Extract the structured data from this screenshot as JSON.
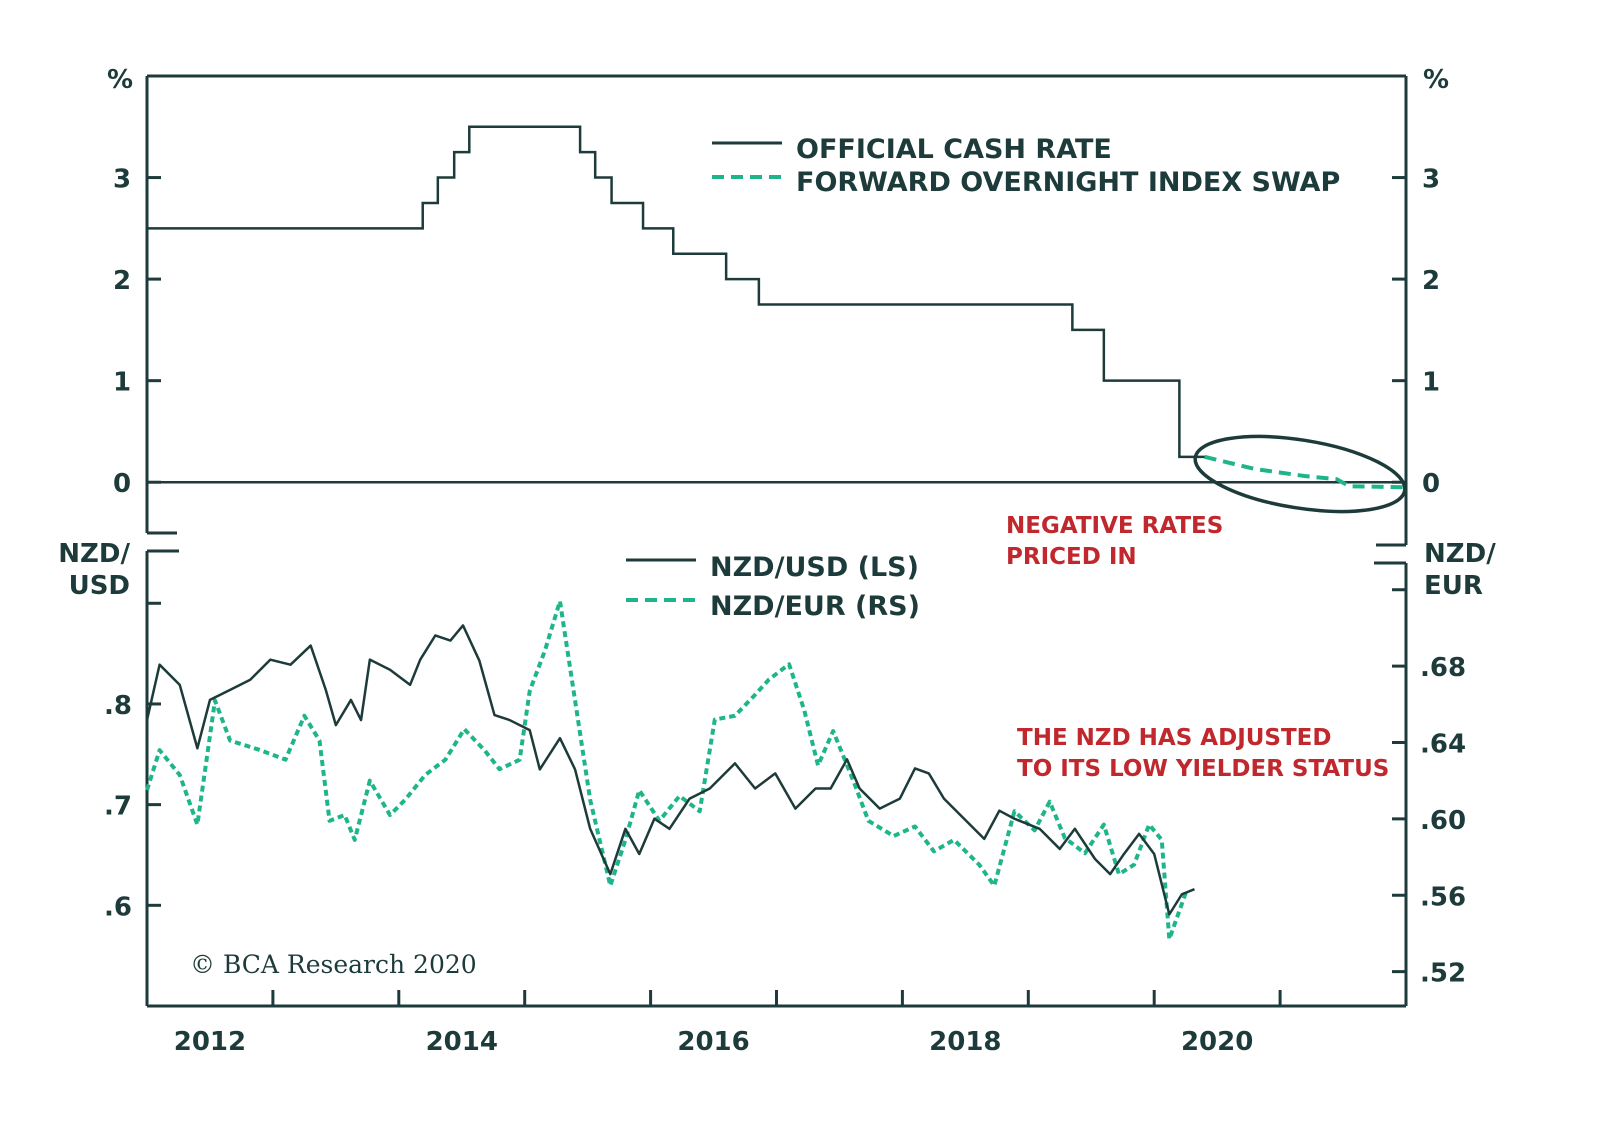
{
  "colors": {
    "dark": "#1d3b3a",
    "green": "#1fb58a",
    "red": "#c0282d"
  },
  "chart_data": [
    {
      "type": "line",
      "panel": "top",
      "ylabel_left": "%",
      "ylabel_right": "%",
      "xlim": [
        2012,
        2022
      ],
      "ylim": [
        -0.5,
        4
      ],
      "yticks": [
        0,
        1,
        2,
        3
      ],
      "ytick_labels": [
        "0",
        "1",
        "2",
        "3"
      ],
      "grid": false,
      "legend_position": "top-right",
      "series": [
        {
          "name": "OFFICIAL CASH RATE",
          "style": "solid",
          "step": true,
          "x": [
            2012.0,
            2014.19,
            2014.31,
            2014.44,
            2014.56,
            2015.44,
            2015.56,
            2015.69,
            2015.94,
            2016.18,
            2016.6,
            2016.86,
            2019.35,
            2019.6,
            2020.2,
            2020.43
          ],
          "y": [
            2.5,
            2.75,
            3.0,
            3.25,
            3.5,
            3.25,
            3.0,
            2.75,
            2.5,
            2.25,
            2.0,
            1.75,
            1.5,
            1.0,
            0.25,
            0.25
          ]
        },
        {
          "name": "FORWARD OVERNIGHT INDEX SWAP",
          "style": "dashed",
          "x": [
            2020.4,
            2020.8,
            2021.2,
            2021.45,
            2021.55,
            2022.0
          ],
          "y": [
            0.25,
            0.13,
            0.06,
            0.03,
            -0.04,
            -0.05
          ]
        }
      ],
      "annotations": [
        {
          "text_lines": [
            "NEGATIVE RATES",
            "PRICED IN"
          ],
          "color": "red"
        }
      ]
    },
    {
      "type": "line",
      "panel": "bottom",
      "ylabel_left": "NZD/ USD",
      "ylabel_left_lines": [
        "NZD/",
        "USD"
      ],
      "ylabel_right_lines": [
        "NZD/",
        "EUR"
      ],
      "xlim": [
        2012,
        2022
      ],
      "xtick_labels": [
        "2012",
        "2014",
        "2016",
        "2018",
        "2020"
      ],
      "ylim_left": [
        0.5,
        0.94
      ],
      "yticks_left": [
        ".8",
        ".7",
        ".6"
      ],
      "ylim_right": [
        0.502,
        0.734
      ],
      "yticks_right": [
        ".68",
        ".64",
        ".60",
        ".56",
        ".52"
      ],
      "grid": false,
      "series": [
        {
          "name": "NZD/USD (LS)",
          "style": "solid",
          "axis": "left",
          "x": [
            2012.0,
            2012.1,
            2012.26,
            2012.4,
            2012.5,
            2012.66,
            2012.82,
            2012.98,
            2013.14,
            2013.3,
            2013.42,
            2013.5,
            2013.62,
            2013.7,
            2013.77,
            2013.93,
            2014.09,
            2014.17,
            2014.29,
            2014.41,
            2014.51,
            2014.64,
            2014.76,
            2014.88,
            2015.04,
            2015.12,
            2015.28,
            2015.4,
            2015.52,
            2015.68,
            2015.8,
            2015.91,
            2016.03,
            2016.15,
            2016.31,
            2016.47,
            2016.67,
            2016.83,
            2016.99,
            2017.15,
            2017.31,
            2017.43,
            2017.56,
            2017.66,
            2017.82,
            2017.98,
            2018.1,
            2018.21,
            2018.33,
            2018.49,
            2018.65,
            2018.77,
            2018.89,
            2019.09,
            2019.25,
            2019.37,
            2019.53,
            2019.65,
            2019.76,
            2019.88,
            2020.0,
            2020.12,
            2020.22,
            2020.32
          ],
          "y": [
            0.784,
            0.839,
            0.819,
            0.756,
            0.804,
            0.814,
            0.824,
            0.844,
            0.839,
            0.858,
            0.814,
            0.779,
            0.804,
            0.784,
            0.844,
            0.834,
            0.819,
            0.844,
            0.868,
            0.863,
            0.878,
            0.843,
            0.789,
            0.784,
            0.774,
            0.735,
            0.766,
            0.735,
            0.676,
            0.631,
            0.676,
            0.651,
            0.686,
            0.676,
            0.706,
            0.716,
            0.741,
            0.716,
            0.731,
            0.696,
            0.716,
            0.716,
            0.745,
            0.716,
            0.696,
            0.706,
            0.736,
            0.731,
            0.706,
            0.686,
            0.666,
            0.694,
            0.686,
            0.676,
            0.656,
            0.676,
            0.646,
            0.631,
            0.651,
            0.671,
            0.651,
            0.591,
            0.611,
            0.616
          ]
        },
        {
          "name": "NZD/EUR (RS)",
          "style": "dashed",
          "axis": "right",
          "x": [
            2012.0,
            2012.1,
            2012.26,
            2012.4,
            2012.54,
            2012.66,
            2012.9,
            2013.1,
            2013.25,
            2013.37,
            2013.45,
            2013.57,
            2013.65,
            2013.77,
            2013.93,
            2014.05,
            2014.21,
            2014.37,
            2014.52,
            2014.68,
            2014.8,
            2014.96,
            2015.04,
            2015.16,
            2015.28,
            2015.4,
            2015.52,
            2015.68,
            2015.8,
            2015.91,
            2016.07,
            2016.23,
            2016.39,
            2016.51,
            2016.67,
            2016.83,
            2016.94,
            2017.1,
            2017.22,
            2017.33,
            2017.45,
            2017.61,
            2017.73,
            2017.93,
            2018.1,
            2018.25,
            2018.41,
            2018.61,
            2018.73,
            2018.89,
            2019.05,
            2019.17,
            2019.29,
            2019.45,
            2019.6,
            2019.72,
            2019.84,
            2019.96,
            2020.06,
            2020.12,
            2020.26
          ],
          "y": [
            0.615,
            0.636,
            0.623,
            0.597,
            0.662,
            0.641,
            0.636,
            0.631,
            0.654,
            0.641,
            0.599,
            0.602,
            0.589,
            0.62,
            0.602,
            0.61,
            0.623,
            0.631,
            0.647,
            0.636,
            0.626,
            0.631,
            0.667,
            0.688,
            0.714,
            0.662,
            0.61,
            0.565,
            0.589,
            0.615,
            0.599,
            0.612,
            0.604,
            0.652,
            0.654,
            0.665,
            0.673,
            0.681,
            0.657,
            0.628,
            0.646,
            0.62,
            0.599,
            0.591,
            0.596,
            0.583,
            0.589,
            0.576,
            0.565,
            0.604,
            0.594,
            0.609,
            0.59,
            0.582,
            0.597,
            0.571,
            0.576,
            0.597,
            0.589,
            0.537,
            0.563
          ]
        }
      ],
      "annotations": [
        {
          "text_lines": [
            "THE NZD HAS ADJUSTED",
            "TO ITS LOW YIELDER STATUS"
          ],
          "color": "red"
        }
      ],
      "copyright": "© BCA Research 2020"
    }
  ]
}
